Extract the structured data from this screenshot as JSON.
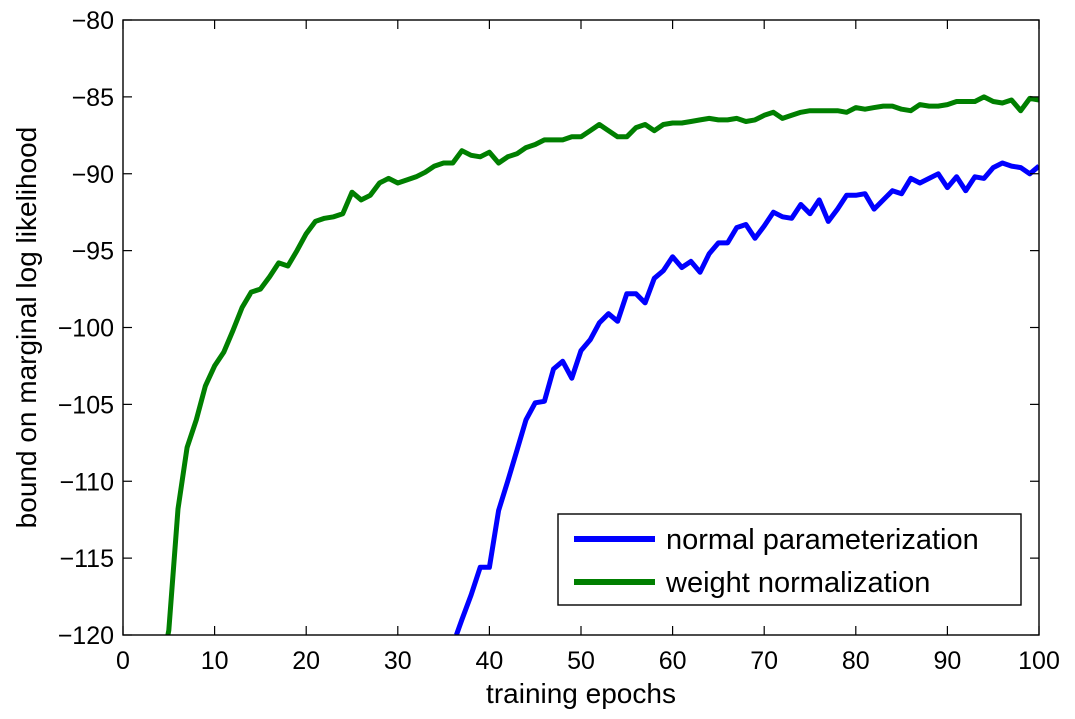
{
  "chart_data": {
    "type": "line",
    "title": "",
    "xlabel": "training epochs",
    "ylabel": "bound on marginal log likelihood",
    "xlim": [
      0,
      100
    ],
    "ylim": [
      -120,
      -80
    ],
    "xticks": [
      0,
      10,
      20,
      30,
      40,
      50,
      60,
      70,
      80,
      90,
      100
    ],
    "yticks": [
      -80,
      -85,
      -90,
      -95,
      -100,
      -105,
      -110,
      -115,
      -120
    ],
    "xtick_labels": [
      "0",
      "10",
      "20",
      "30",
      "40",
      "50",
      "60",
      "70",
      "80",
      "90",
      "100"
    ],
    "ytick_labels": [
      "−80",
      "−85",
      "−90",
      "−95",
      "−100",
      "−105",
      "−110",
      "−115",
      "−120"
    ],
    "grid": false,
    "legend_position": "lower-right",
    "series": [
      {
        "name": "normal parameterization",
        "color": "#0000ff",
        "points": [
          [
            36.4,
            -120
          ],
          [
            37,
            -119
          ],
          [
            38,
            -117.4
          ],
          [
            39,
            -115.6
          ],
          [
            40,
            -115.6
          ],
          [
            41,
            -111.9
          ],
          [
            42,
            -110
          ],
          [
            43,
            -108
          ],
          [
            44,
            -106
          ],
          [
            45,
            -104.9
          ],
          [
            46,
            -104.8
          ],
          [
            47,
            -102.7
          ],
          [
            48,
            -102.2
          ],
          [
            49,
            -103.3
          ],
          [
            50,
            -101.5
          ],
          [
            51,
            -100.8
          ],
          [
            52,
            -99.7
          ],
          [
            53,
            -99.1
          ],
          [
            54,
            -99.6
          ],
          [
            55,
            -97.8
          ],
          [
            56,
            -97.8
          ],
          [
            57,
            -98.4
          ],
          [
            58,
            -96.8
          ],
          [
            59,
            -96.3
          ],
          [
            60,
            -95.4
          ],
          [
            61,
            -96.1
          ],
          [
            62,
            -95.7
          ],
          [
            63,
            -96.4
          ],
          [
            64,
            -95.2
          ],
          [
            65,
            -94.5
          ],
          [
            66,
            -94.5
          ],
          [
            67,
            -93.5
          ],
          [
            68,
            -93.3
          ],
          [
            69,
            -94.2
          ],
          [
            70,
            -93.4
          ],
          [
            71,
            -92.5
          ],
          [
            72,
            -92.8
          ],
          [
            73,
            -92.9
          ],
          [
            74,
            -92
          ],
          [
            75,
            -92.6
          ],
          [
            76,
            -91.7
          ],
          [
            77,
            -93.1
          ],
          [
            78,
            -92.3
          ],
          [
            79,
            -91.4
          ],
          [
            80,
            -91.4
          ],
          [
            81,
            -91.3
          ],
          [
            82,
            -92.3
          ],
          [
            83,
            -91.7
          ],
          [
            84,
            -91.1
          ],
          [
            85,
            -91.3
          ],
          [
            86,
            -90.3
          ],
          [
            87,
            -90.6
          ],
          [
            88,
            -90.3
          ],
          [
            89,
            -90
          ],
          [
            90,
            -90.9
          ],
          [
            91,
            -90.2
          ],
          [
            92,
            -91.1
          ],
          [
            93,
            -90.2
          ],
          [
            94,
            -90.3
          ],
          [
            95,
            -89.6
          ],
          [
            96,
            -89.3
          ],
          [
            97,
            -89.5
          ],
          [
            98,
            -89.6
          ],
          [
            99,
            -90
          ],
          [
            100,
            -89.5
          ]
        ]
      },
      {
        "name": "weight normalization",
        "color": "#007f00",
        "points": [
          [
            4.9,
            -120
          ],
          [
            5,
            -119.7
          ],
          [
            6,
            -111.8
          ],
          [
            7,
            -107.8
          ],
          [
            8,
            -106
          ],
          [
            9,
            -103.8
          ],
          [
            10,
            -102.5
          ],
          [
            11,
            -101.6
          ],
          [
            12,
            -100.2
          ],
          [
            13,
            -98.7
          ],
          [
            14,
            -97.7
          ],
          [
            15,
            -97.5
          ],
          [
            16,
            -96.7
          ],
          [
            17,
            -95.8
          ],
          [
            18,
            -96
          ],
          [
            19,
            -95
          ],
          [
            20,
            -93.9
          ],
          [
            21,
            -93.1
          ],
          [
            22,
            -92.9
          ],
          [
            23,
            -92.8
          ],
          [
            24,
            -92.6
          ],
          [
            25,
            -91.2
          ],
          [
            26,
            -91.7
          ],
          [
            27,
            -91.4
          ],
          [
            28,
            -90.6
          ],
          [
            29,
            -90.3
          ],
          [
            30,
            -90.6
          ],
          [
            31,
            -90.4
          ],
          [
            32,
            -90.2
          ],
          [
            33,
            -89.9
          ],
          [
            34,
            -89.5
          ],
          [
            35,
            -89.3
          ],
          [
            36,
            -89.3
          ],
          [
            37,
            -88.5
          ],
          [
            38,
            -88.8
          ],
          [
            39,
            -88.9
          ],
          [
            40,
            -88.6
          ],
          [
            41,
            -89.3
          ],
          [
            42,
            -88.9
          ],
          [
            43,
            -88.7
          ],
          [
            44,
            -88.3
          ],
          [
            45,
            -88.1
          ],
          [
            46,
            -87.8
          ],
          [
            47,
            -87.8
          ],
          [
            48,
            -87.8
          ],
          [
            49,
            -87.6
          ],
          [
            50,
            -87.6
          ],
          [
            51,
            -87.2
          ],
          [
            52,
            -86.8
          ],
          [
            53,
            -87.2
          ],
          [
            54,
            -87.6
          ],
          [
            55,
            -87.6
          ],
          [
            56,
            -87
          ],
          [
            57,
            -86.8
          ],
          [
            58,
            -87.2
          ],
          [
            59,
            -86.8
          ],
          [
            60,
            -86.7
          ],
          [
            61,
            -86.7
          ],
          [
            62,
            -86.6
          ],
          [
            63,
            -86.5
          ],
          [
            64,
            -86.4
          ],
          [
            65,
            -86.5
          ],
          [
            66,
            -86.5
          ],
          [
            67,
            -86.4
          ],
          [
            68,
            -86.6
          ],
          [
            69,
            -86.5
          ],
          [
            70,
            -86.2
          ],
          [
            71,
            -86
          ],
          [
            72,
            -86.4
          ],
          [
            73,
            -86.2
          ],
          [
            74,
            -86
          ],
          [
            75,
            -85.9
          ],
          [
            76,
            -85.9
          ],
          [
            77,
            -85.9
          ],
          [
            78,
            -85.9
          ],
          [
            79,
            -86
          ],
          [
            80,
            -85.7
          ],
          [
            81,
            -85.8
          ],
          [
            82,
            -85.7
          ],
          [
            83,
            -85.6
          ],
          [
            84,
            -85.6
          ],
          [
            85,
            -85.8
          ],
          [
            86,
            -85.9
          ],
          [
            87,
            -85.5
          ],
          [
            88,
            -85.6
          ],
          [
            89,
            -85.6
          ],
          [
            90,
            -85.5
          ],
          [
            91,
            -85.3
          ],
          [
            92,
            -85.3
          ],
          [
            93,
            -85.3
          ],
          [
            94,
            -85
          ],
          [
            95,
            -85.3
          ],
          [
            96,
            -85.4
          ],
          [
            97,
            -85.2
          ],
          [
            98,
            -85.9
          ],
          [
            99,
            -85.1
          ],
          [
            100,
            -85.2
          ]
        ]
      }
    ]
  }
}
